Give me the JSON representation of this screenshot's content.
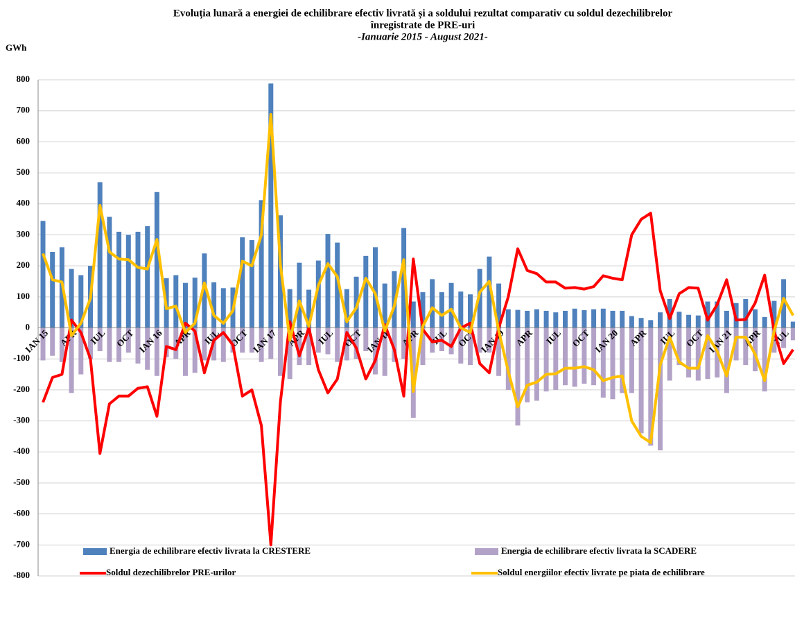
{
  "chart_data": {
    "type": "bar_line",
    "title": [
      "Evoluția lunară a energiei de echilibrare efectiv livrată și a soldului rezultat comparativ cu soldul dezechilibrelor",
      "înregistrate de PRE-uri"
    ],
    "subtitle": "-Ianuarie 2015 - August 2021-",
    "y_label": "GWh",
    "categories": [
      "IAN 15",
      null,
      null,
      "APR",
      null,
      null,
      "IUL",
      null,
      null,
      "OCT",
      null,
      null,
      "IAN 16",
      null,
      null,
      "APR",
      null,
      null,
      "IUL",
      null,
      null,
      "OCT",
      null,
      null,
      "IAN 17",
      null,
      null,
      "APR",
      null,
      null,
      "IUL",
      null,
      null,
      "OCT",
      null,
      null,
      "IAN 18",
      null,
      null,
      "APR",
      null,
      null,
      "IUL",
      null,
      null,
      "OCT",
      null,
      null,
      "IAN 19",
      null,
      null,
      "APR",
      null,
      null,
      "IUL",
      null,
      null,
      "OCT",
      null,
      null,
      "IAN 20",
      null,
      null,
      "APR",
      null,
      null,
      "IUL",
      null,
      null,
      "OCT",
      null,
      null,
      "IAN 21",
      null,
      null,
      "APR",
      null,
      null,
      "IUL",
      null
    ],
    "series": [
      {
        "name": "Energia de echilibrare efectiv livrata la CRESTERE",
        "kind": "bar",
        "color": "#4f81bd",
        "values": [
          345,
          245,
          260,
          190,
          170,
          200,
          470,
          358,
          310,
          300,
          310,
          328,
          438,
          160,
          170,
          145,
          162,
          240,
          147,
          128,
          130,
          292,
          283,
          412,
          788,
          363,
          125,
          210,
          123,
          217,
          303,
          275,
          125,
          165,
          232,
          260,
          143,
          183,
          322,
          85,
          115,
          157,
          115,
          145,
          117,
          108,
          190,
          230,
          143,
          60,
          58,
          55,
          60,
          55,
          50,
          55,
          62,
          57,
          60,
          62,
          55,
          55,
          38,
          32,
          25,
          50,
          93,
          52,
          42,
          40,
          85,
          85,
          55,
          80,
          93,
          60,
          35,
          87,
          157,
          20
        ]
      },
      {
        "name": "Energia de echilibrare efectiv livrata la SCADERE",
        "kind": "bar",
        "color": "#b3a2c7",
        "values": [
          -105,
          -90,
          -110,
          -210,
          -150,
          -100,
          -75,
          -110,
          -110,
          -80,
          -115,
          -135,
          -155,
          -95,
          -100,
          -155,
          -145,
          -105,
          -105,
          -110,
          -80,
          -80,
          -80,
          -110,
          -100,
          -155,
          -165,
          -120,
          -120,
          -80,
          -85,
          -110,
          -105,
          -100,
          -75,
          -150,
          -155,
          -110,
          -100,
          -290,
          -120,
          -80,
          -75,
          -85,
          -115,
          -120,
          -80,
          -80,
          -155,
          -200,
          -315,
          -240,
          -235,
          -205,
          -200,
          -185,
          -190,
          -180,
          -185,
          -225,
          -230,
          -210,
          -210,
          -340,
          -380,
          -395,
          -170,
          -120,
          -160,
          -170,
          -165,
          -160,
          -210,
          -105,
          -120,
          -140,
          -205,
          -80,
          -65,
          -40
        ]
      },
      {
        "name": "Soldul dezechilibrelor PRE-urilor",
        "kind": "line",
        "color": "#ff0000",
        "values": [
          -240,
          -160,
          -150,
          25,
          -15,
          -100,
          -405,
          -245,
          -220,
          -220,
          -195,
          -190,
          -285,
          -60,
          -70,
          15,
          -10,
          -145,
          -40,
          -15,
          -55,
          -220,
          -200,
          -315,
          -700,
          -240,
          20,
          -90,
          0,
          -135,
          -210,
          -165,
          -15,
          -65,
          -165,
          -105,
          10,
          -70,
          -220,
          222,
          -5,
          -45,
          -40,
          -60,
          0,
          15,
          -115,
          -145,
          0,
          100,
          255,
          185,
          175,
          148,
          148,
          128,
          130,
          125,
          133,
          168,
          160,
          155,
          300,
          350,
          370,
          120,
          30,
          110,
          130,
          128,
          25,
          75,
          155,
          25,
          27,
          80,
          170,
          -10,
          -115,
          -70
        ]
      },
      {
        "name": "Soldul energiilor efectiv livrate pe piata de echilibrare",
        "kind": "line",
        "color": "#ffc000",
        "values": [
          240,
          155,
          148,
          -25,
          15,
          95,
          395,
          245,
          222,
          220,
          195,
          190,
          285,
          62,
          70,
          -15,
          15,
          145,
          40,
          15,
          55,
          215,
          200,
          300,
          688,
          205,
          -40,
          87,
          5,
          137,
          207,
          165,
          20,
          65,
          160,
          110,
          -10,
          70,
          220,
          -205,
          5,
          65,
          40,
          60,
          0,
          -15,
          115,
          150,
          -10,
          -140,
          -255,
          -185,
          -175,
          -150,
          -148,
          -130,
          -130,
          -125,
          -135,
          -170,
          -160,
          -155,
          -300,
          -350,
          -370,
          -120,
          -30,
          -110,
          -130,
          -130,
          -25,
          -75,
          -155,
          -30,
          -30,
          -85,
          -170,
          -10,
          95,
          40
        ]
      }
    ],
    "ylim": [
      -800,
      800
    ],
    "yticks": [
      -800,
      -700,
      -600,
      -500,
      -400,
      -300,
      -200,
      -100,
      0,
      100,
      200,
      300,
      400,
      500,
      600,
      700,
      800
    ],
    "grid": true
  }
}
